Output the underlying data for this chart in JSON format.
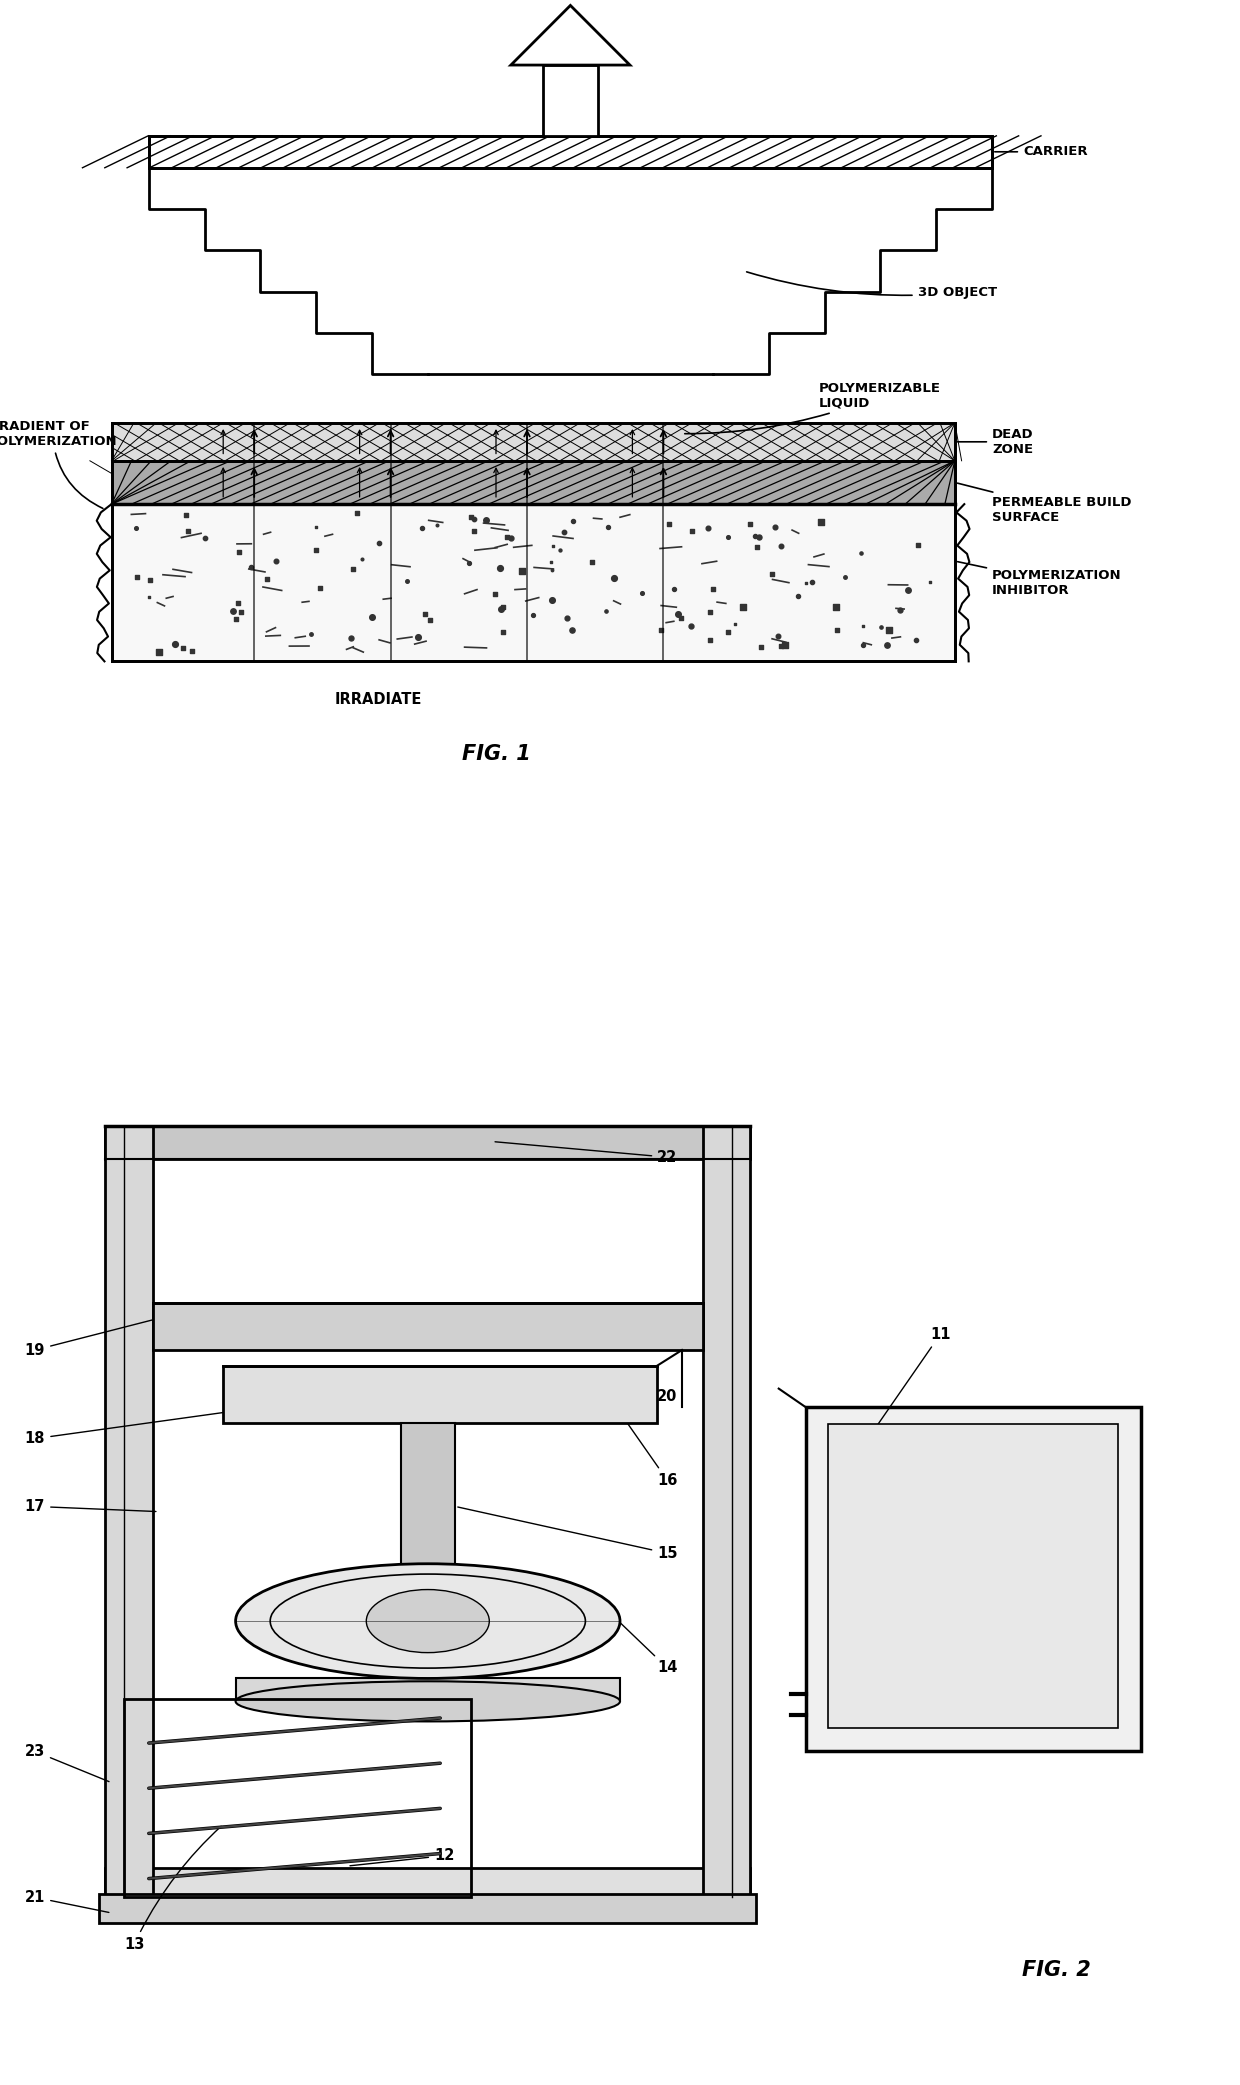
{
  "bg_color": "#ffffff",
  "line_color": "#000000",
  "fig1_title": "FIG. 1",
  "fig2_title": "FIG. 2",
  "labels_fig1": {
    "carrier": "CARRIER",
    "3d_object": "3D OBJECT",
    "polymerizable_liquid": "POLYMERIZABLE\nLIQUID",
    "dead_zone": "DEAD\nZONE",
    "permeable_build_surface": "PERMEABLE BUILD\nSURFACE",
    "polymerization_inhibitor": "POLYMERIZATION\nINHIBITOR",
    "gradient_of_polymerization": "GRADIENT OF\nPOLYMERIZATION",
    "irradiate": "IRRADIATE"
  }
}
